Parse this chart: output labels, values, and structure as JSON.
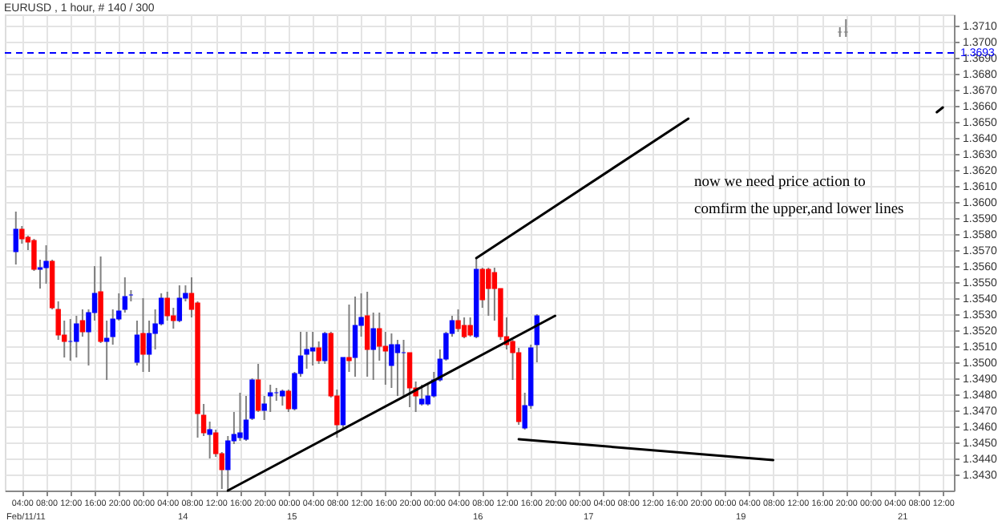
{
  "chart_data": {
    "type": "candlestick",
    "title": "EURUSD , 1 hour, # 140 / 300",
    "categories": [
      null,
      "04:00",
      null,
      null,
      null,
      "08:00",
      null,
      null,
      null,
      "12:00",
      null,
      null,
      null,
      "16:00",
      null,
      null,
      null,
      "20:00",
      null,
      null,
      null,
      "00:00",
      null,
      null,
      null,
      "04:00",
      null,
      null,
      null,
      "08:00",
      null,
      null,
      null,
      "12:00",
      null,
      null,
      null,
      "16:00",
      null,
      null,
      null,
      "20:00",
      null,
      null,
      null,
      "00:00",
      null,
      null,
      null,
      "04:00",
      null,
      null,
      null,
      "08:00",
      null,
      null,
      null,
      "12:00",
      null,
      null,
      null,
      "16:00",
      null,
      null,
      null,
      "20:00",
      null,
      null,
      null,
      "00:00",
      null,
      null,
      null,
      "04:00",
      null,
      null,
      null,
      "08:00",
      null,
      null,
      null,
      "12:00",
      null,
      null,
      null,
      "16:00",
      null,
      null,
      null,
      "20:00",
      null,
      null,
      null,
      "00:00",
      null,
      null,
      null,
      "04:00",
      null,
      null,
      null,
      "08:00",
      null,
      null,
      null,
      "12:00",
      null,
      null,
      null,
      "16:00",
      null,
      null,
      null,
      "20:00",
      null,
      null,
      null,
      "00:00",
      null,
      null,
      null,
      "04:00",
      null,
      null,
      null,
      "08:00",
      null,
      null,
      null,
      "12:00",
      null,
      null,
      null,
      "16:00",
      null,
      null,
      null,
      "20:00",
      null,
      null,
      null,
      "00:00",
      null,
      null,
      null,
      "04:00",
      null,
      null,
      null,
      "08:00",
      null,
      null,
      null,
      "12:00"
    ],
    "ohlc": [
      [
        1.3569,
        1.3594,
        1.3561,
        1.3583
      ],
      [
        1.3583,
        1.3585,
        1.3574,
        1.3577
      ],
      [
        1.3578,
        1.3579,
        1.357,
        1.3575
      ],
      [
        1.3576,
        1.3577,
        1.3557,
        1.3558
      ],
      [
        1.3558,
        1.3564,
        1.3546,
        1.3559
      ],
      [
        1.3559,
        1.3573,
        1.3549,
        1.3563
      ],
      [
        1.3563,
        1.3564,
        1.3533,
        1.3534
      ],
      [
        1.3533,
        1.3538,
        1.3514,
        1.3517
      ],
      [
        1.3517,
        1.3526,
        1.3503,
        1.3513
      ],
      [
        1.3513,
        1.3527,
        1.3501,
        1.3513
      ],
      [
        1.3513,
        1.3529,
        1.3503,
        1.3524
      ],
      [
        1.3526,
        1.3533,
        1.3516,
        1.3519
      ],
      [
        1.3519,
        1.3533,
        1.3498,
        1.3531
      ],
      [
        1.3531,
        1.356,
        1.3526,
        1.3543
      ],
      [
        1.3544,
        1.3566,
        1.3512,
        1.3513
      ],
      [
        1.3513,
        1.3526,
        1.3489,
        1.3515
      ],
      [
        1.3516,
        1.3533,
        1.3511,
        1.3527
      ],
      [
        1.3527,
        1.3543,
        1.3526,
        1.3532
      ],
      [
        1.3533,
        1.3553,
        1.3531,
        1.3541
      ],
      [
        1.3542,
        1.3545,
        1.3538,
        1.3542
      ],
      [
        1.35,
        1.3526,
        1.3498,
        1.3517
      ],
      [
        1.3518,
        1.354,
        1.3494,
        1.3505
      ],
      [
        1.3505,
        1.3526,
        1.3494,
        1.3518
      ],
      [
        1.3518,
        1.3533,
        1.3508,
        1.3524
      ],
      [
        1.3524,
        1.3543,
        1.3523,
        1.354
      ],
      [
        1.354,
        1.3544,
        1.3526,
        1.3529
      ],
      [
        1.3529,
        1.3534,
        1.3521,
        1.3526
      ],
      [
        1.3526,
        1.3548,
        1.3525,
        1.354
      ],
      [
        1.354,
        1.3548,
        1.3538,
        1.3543
      ],
      [
        1.3543,
        1.3553,
        1.3528,
        1.3533
      ],
      [
        1.3537,
        1.3538,
        1.3453,
        1.3468
      ],
      [
        1.3467,
        1.3474,
        1.3454,
        1.3456
      ],
      [
        1.3455,
        1.3463,
        1.344,
        1.3458
      ],
      [
        1.3456,
        1.3458,
        1.3441,
        1.3443
      ],
      [
        1.3443,
        1.3444,
        1.3421,
        1.3433
      ],
      [
        1.3433,
        1.3454,
        1.342,
        1.3451
      ],
      [
        1.3451,
        1.3469,
        1.3449,
        1.3455
      ],
      [
        1.3453,
        1.3481,
        1.3451,
        1.3456
      ],
      [
        1.3452,
        1.3479,
        1.3451,
        1.3464
      ],
      [
        1.3465,
        1.349,
        1.3464,
        1.3489
      ],
      [
        1.3489,
        1.3499,
        1.3469,
        1.347
      ],
      [
        1.347,
        1.3479,
        1.3464,
        1.3474
      ],
      [
        1.3479,
        1.3486,
        1.3469,
        1.3481
      ],
      [
        1.3481,
        1.3484,
        1.3476,
        1.3481
      ],
      [
        1.3479,
        1.3483,
        1.3473,
        1.3482
      ],
      [
        1.3482,
        1.3483,
        1.3469,
        1.3471
      ],
      [
        1.3471,
        1.3494,
        1.347,
        1.3493
      ],
      [
        1.3493,
        1.3519,
        1.3491,
        1.3504
      ],
      [
        1.3505,
        1.3519,
        1.3496,
        1.3508
      ],
      [
        1.3507,
        1.3519,
        1.3498,
        1.3509
      ],
      [
        1.3509,
        1.3513,
        1.3499,
        1.3501
      ],
      [
        1.3501,
        1.3519,
        1.3499,
        1.3518
      ],
      [
        1.3518,
        1.3519,
        1.3478,
        1.3479
      ],
      [
        1.3479,
        1.3483,
        1.3453,
        1.3461
      ],
      [
        1.3461,
        1.3503,
        1.3459,
        1.3503
      ],
      [
        1.3503,
        1.3536,
        1.3494,
        1.3501
      ],
      [
        1.3503,
        1.3541,
        1.3491,
        1.3523
      ],
      [
        1.3523,
        1.3543,
        1.3516,
        1.3528
      ],
      [
        1.3529,
        1.3544,
        1.3491,
        1.3508
      ],
      [
        1.3508,
        1.3531,
        1.3489,
        1.3521
      ],
      [
        1.3521,
        1.3531,
        1.3501,
        1.351
      ],
      [
        1.351,
        1.3519,
        1.3486,
        1.3507
      ],
      [
        1.3498,
        1.3518,
        1.3484,
        1.3511
      ],
      [
        1.3506,
        1.3514,
        1.3479,
        1.3511
      ],
      [
        1.3506,
        1.3514,
        1.3478,
        1.3506
      ],
      [
        1.3506,
        1.3506,
        1.3472,
        1.3484
      ],
      [
        1.3484,
        1.3488,
        1.3469,
        1.3479
      ],
      [
        1.3474,
        1.3486,
        1.3473,
        1.3477
      ],
      [
        1.3474,
        1.3486,
        1.3473,
        1.3479
      ],
      [
        1.3479,
        1.3494,
        1.3478,
        1.3489
      ],
      [
        1.3489,
        1.3508,
        1.3488,
        1.3502
      ],
      [
        1.3502,
        1.3519,
        1.3501,
        1.3518
      ],
      [
        1.3518,
        1.3529,
        1.3516,
        1.3526
      ],
      [
        1.3526,
        1.3533,
        1.3519,
        1.3521
      ],
      [
        1.3523,
        1.3528,
        1.3515,
        1.3516
      ],
      [
        1.3523,
        1.3528,
        1.3516,
        1.3517
      ],
      [
        1.3516,
        1.3565,
        1.3515,
        1.3558
      ],
      [
        1.3558,
        1.3559,
        1.3534,
        1.3539
      ],
      [
        1.3558,
        1.3559,
        1.3529,
        1.3546
      ],
      [
        1.3556,
        1.3559,
        1.3526,
        1.3546
      ],
      [
        1.3546,
        1.3546,
        1.3514,
        1.3516
      ],
      [
        1.3516,
        1.3528,
        1.3508,
        1.3511
      ],
      [
        1.3513,
        1.3514,
        1.3489,
        1.3506
      ],
      [
        1.3506,
        1.3509,
        1.3461,
        1.3463
      ],
      [
        1.3459,
        1.3481,
        1.3458,
        1.3473
      ],
      [
        1.3473,
        1.3511,
        1.3471,
        1.3509
      ],
      [
        1.3511,
        1.353,
        1.35,
        1.3529
      ],
      null,
      null,
      null,
      null,
      null,
      null,
      null,
      null,
      null,
      null,
      null,
      null,
      null,
      null,
      null,
      null,
      null,
      null,
      null,
      null,
      null,
      null,
      null,
      null,
      null,
      null,
      null,
      null,
      null,
      null,
      null,
      null,
      null,
      null,
      null,
      null,
      null,
      null,
      null,
      null,
      null,
      null,
      null,
      null,
      null,
      null,
      null,
      null,
      null,
      [
        1.3706,
        1.3709,
        1.3703,
        1.3706
      ],
      [
        1.3706,
        1.3714,
        1.3703,
        1.3706
      ],
      null,
      null,
      null,
      null,
      null,
      null,
      null,
      null,
      null,
      null,
      null,
      null,
      null,
      null,
      null,
      null
    ],
    "colors": [
      "#0000ff",
      "#ff0000",
      "#ff0000",
      "#ff0000",
      "#0000ff",
      "#0000ff",
      "#ff0000",
      "#ff0000",
      "#ff0000",
      "#0000ff",
      "#0000ff",
      "#ff0000",
      "#0000ff",
      "#0000ff",
      "#ff0000",
      "#0000ff",
      "#0000ff",
      "#0000ff",
      "#0000ff",
      "#0000ff",
      "#0000ff",
      "#ff0000",
      "#0000ff",
      "#0000ff",
      "#0000ff",
      "#ff0000",
      "#ff0000",
      "#0000ff",
      "#0000ff",
      "#ff0000",
      "#ff0000",
      "#ff0000",
      "#0000ff",
      "#ff0000",
      "#ff0000",
      "#0000ff",
      "#0000ff",
      "#0000ff",
      "#0000ff",
      "#0000ff",
      "#ff0000",
      "#0000ff",
      "#0000ff",
      "#0000ff",
      "#0000ff",
      "#ff0000",
      "#0000ff",
      "#0000ff",
      "#0000ff",
      "#0000ff",
      "#ff0000",
      "#0000ff",
      "#ff0000",
      "#ff0000",
      "#0000ff",
      "#ff0000",
      "#0000ff",
      "#0000ff",
      "#ff0000",
      "#0000ff",
      "#ff0000",
      "#ff0000",
      "#0000ff",
      "#0000ff",
      "#0000ff",
      "#ff0000",
      "#ff0000",
      "#0000ff",
      "#0000ff",
      "#0000ff",
      "#0000ff",
      "#0000ff",
      "#0000ff",
      "#ff0000",
      "#ff0000",
      "#ff0000",
      "#0000ff",
      "#ff0000",
      "#ff0000",
      "#ff0000",
      "#ff0000",
      "#ff0000",
      "#ff0000",
      "#ff0000",
      "#0000ff",
      "#0000ff",
      "#0000ff",
      null,
      null,
      null,
      null,
      null,
      null,
      null,
      null,
      null,
      null,
      null,
      null,
      null,
      null,
      null,
      null,
      null,
      null,
      null,
      null,
      null,
      null,
      null,
      null,
      null,
      null,
      null,
      null,
      null,
      null,
      null,
      null,
      null,
      null,
      null,
      null,
      null,
      null,
      null,
      null,
      null,
      null,
      null,
      null,
      null,
      null,
      null,
      null,
      null,
      "#808080",
      "#808080",
      null,
      null,
      null,
      null,
      null,
      null,
      null,
      null,
      null,
      null,
      null,
      null,
      null,
      null,
      null,
      null
    ],
    "series": [
      {
        "type": "line",
        "color": "#000000",
        "values": [
          null,
          null,
          null,
          null,
          null,
          null,
          null,
          null,
          null,
          null,
          null,
          null,
          null,
          null,
          null,
          null,
          null,
          null,
          null,
          null,
          null,
          null,
          null,
          null,
          null,
          null,
          null,
          null,
          null,
          null,
          null,
          null,
          null,
          null,
          null,
          1.342,
          null,
          null,
          null,
          null,
          null,
          null,
          null,
          null,
          null,
          null,
          null,
          null,
          null,
          null,
          null,
          null,
          null,
          null,
          null,
          null,
          null,
          null,
          null,
          null,
          null,
          null,
          null,
          null,
          null,
          null,
          null,
          null,
          null,
          null,
          null,
          null,
          null,
          null,
          null,
          null,
          null,
          null,
          null,
          null,
          null,
          null,
          null,
          null,
          null,
          null,
          null,
          null,
          null,
          1.3529,
          null,
          null,
          null,
          null,
          null,
          null,
          null,
          null,
          null,
          null,
          null,
          null,
          null,
          null,
          null,
          null,
          null,
          null,
          null,
          null,
          null,
          null,
          null,
          null,
          null,
          null,
          null,
          null,
          null,
          null,
          null,
          null,
          null,
          null,
          null,
          null,
          null,
          null,
          null,
          null,
          null,
          null,
          null,
          null,
          null,
          null,
          null,
          null,
          null,
          null,
          null,
          null,
          null,
          null,
          null,
          null,
          null,
          null,
          null,
          null,
          null,
          null,
          null,
          null
        ]
      },
      {
        "type": "line",
        "color": "#000000",
        "values": [
          null,
          null,
          null,
          null,
          null,
          null,
          null,
          null,
          null,
          null,
          null,
          null,
          null,
          null,
          null,
          null,
          null,
          null,
          null,
          null,
          null,
          null,
          null,
          null,
          null,
          null,
          null,
          null,
          null,
          null,
          null,
          null,
          null,
          null,
          null,
          null,
          null,
          null,
          null,
          null,
          null,
          null,
          null,
          null,
          null,
          null,
          null,
          null,
          null,
          null,
          null,
          null,
          null,
          null,
          null,
          null,
          null,
          null,
          null,
          null,
          null,
          null,
          null,
          null,
          null,
          null,
          null,
          null,
          null,
          null,
          null,
          null,
          null,
          null,
          null,
          null,
          1.3565,
          null,
          null,
          null,
          null,
          null,
          null,
          null,
          null,
          null,
          null,
          null,
          null,
          null,
          null,
          null,
          null,
          null,
          null,
          null,
          null,
          null,
          null,
          null,
          null,
          null,
          null,
          null,
          null,
          null,
          null,
          null,
          null,
          null,
          null,
          1.3652,
          null,
          null,
          null,
          null,
          null,
          null,
          null,
          null,
          null,
          null,
          null,
          null,
          null,
          null,
          null,
          null,
          null,
          null,
          null,
          null,
          null,
          null,
          null,
          null,
          null,
          null,
          null,
          null,
          null,
          null,
          null,
          null,
          null,
          null,
          null,
          null,
          null,
          null,
          null,
          null,
          null,
          null
        ]
      },
      {
        "type": "line",
        "color": "#000000",
        "values": [
          null,
          null,
          null,
          null,
          null,
          null,
          null,
          null,
          null,
          null,
          null,
          null,
          null,
          null,
          null,
          null,
          null,
          null,
          null,
          null,
          null,
          null,
          null,
          null,
          null,
          null,
          null,
          null,
          null,
          null,
          null,
          null,
          null,
          null,
          null,
          null,
          null,
          null,
          null,
          null,
          null,
          null,
          null,
          null,
          null,
          null,
          null,
          null,
          null,
          null,
          null,
          null,
          null,
          null,
          null,
          null,
          null,
          null,
          null,
          null,
          null,
          null,
          null,
          null,
          null,
          null,
          null,
          null,
          null,
          null,
          null,
          null,
          null,
          null,
          null,
          null,
          null,
          null,
          null,
          null,
          null,
          null,
          null,
          1.3452,
          null,
          null,
          null,
          null,
          null,
          null,
          null,
          null,
          null,
          null,
          null,
          null,
          null,
          null,
          null,
          null,
          null,
          null,
          null,
          null,
          null,
          null,
          null,
          null,
          null,
          null,
          null,
          null,
          null,
          null,
          null,
          null,
          null,
          null,
          null,
          null,
          null,
          null,
          null,
          null,
          null,
          1.3439,
          null,
          null,
          null,
          null,
          null,
          null,
          null,
          null,
          null,
          null,
          null,
          null,
          null,
          null,
          null,
          null,
          null,
          null,
          null,
          null,
          null,
          null,
          null,
          null,
          null,
          null,
          null,
          null
        ]
      },
      {
        "type": "line",
        "color": "#000000",
        "values": [
          null,
          null,
          null,
          null,
          null,
          null,
          null,
          null,
          null,
          null,
          null,
          null,
          null,
          null,
          null,
          null,
          null,
          null,
          null,
          null,
          null,
          null,
          null,
          null,
          null,
          null,
          null,
          null,
          null,
          null,
          null,
          null,
          null,
          null,
          null,
          null,
          null,
          null,
          null,
          null,
          null,
          null,
          null,
          null,
          null,
          null,
          null,
          null,
          null,
          null,
          null,
          null,
          null,
          null,
          null,
          null,
          null,
          null,
          null,
          null,
          null,
          null,
          null,
          null,
          null,
          null,
          null,
          null,
          null,
          null,
          null,
          null,
          null,
          null,
          null,
          null,
          null,
          null,
          null,
          null,
          null,
          null,
          null,
          null,
          null,
          null,
          null,
          null,
          null,
          null,
          null,
          null,
          null,
          null,
          null,
          null,
          null,
          null,
          null,
          null,
          null,
          null,
          null,
          null,
          null,
          null,
          null,
          null,
          null,
          null,
          null,
          null,
          null,
          null,
          null,
          null,
          null,
          null,
          null,
          null,
          null,
          null,
          null,
          null,
          null,
          null,
          null,
          null,
          null,
          null,
          null,
          null,
          null,
          null,
          null,
          null,
          null,
          null,
          null,
          null,
          null,
          null,
          null,
          null,
          null,
          null,
          null,
          null,
          null,
          null,
          null,
          null,
          1.3656,
          1.3659
        ]
      }
    ],
    "ref_lines": [
      {
        "axis": "y",
        "value": 1.3693,
        "label": "1.3693",
        "color": "#0000ff",
        "line_style": "dashed"
      }
    ],
    "annotations": [
      "now we need price action to",
      "comfirm the upper,and lower lines",
      "Feb/11/11",
      "14",
      "15",
      "16",
      "17",
      "19",
      "21"
    ],
    "ylim": [
      1.342,
      1.3717
    ],
    "yticks": [
      {
        "value": 1.343,
        "label": "1.3430"
      },
      {
        "value": 1.344,
        "label": "1.3440"
      },
      {
        "value": 1.345,
        "label": "1.3450"
      },
      {
        "value": 1.346,
        "label": "1.3460"
      },
      {
        "value": 1.347,
        "label": "1.3470"
      },
      {
        "value": 1.348,
        "label": "1.3480"
      },
      {
        "value": 1.349,
        "label": "1.3490"
      },
      {
        "value": 1.35,
        "label": "1.3500"
      },
      {
        "value": 1.351,
        "label": "1.3510"
      },
      {
        "value": 1.352,
        "label": "1.3520"
      },
      {
        "value": 1.353,
        "label": "1.3530"
      },
      {
        "value": 1.354,
        "label": "1.3540"
      },
      {
        "value": 1.355,
        "label": "1.3550"
      },
      {
        "value": 1.356,
        "label": "1.3560"
      },
      {
        "value": 1.357,
        "label": "1.3570"
      },
      {
        "value": 1.358,
        "label": "1.3580"
      },
      {
        "value": 1.359,
        "label": "1.3590"
      },
      {
        "value": 1.36,
        "label": "1.3600"
      },
      {
        "value": 1.361,
        "label": "1.3610"
      },
      {
        "value": 1.362,
        "label": "1.3620"
      },
      {
        "value": 1.363,
        "label": "1.3630"
      },
      {
        "value": 1.364,
        "label": "1.3640"
      },
      {
        "value": 1.365,
        "label": "1.3650"
      },
      {
        "value": 1.366,
        "label": "1.3660"
      },
      {
        "value": 1.367,
        "label": "1.3670"
      },
      {
        "value": 1.368,
        "label": "1.3680"
      },
      {
        "value": 1.369,
        "label": "1.3690"
      },
      {
        "value": 1.37,
        "label": "1.3700"
      },
      {
        "value": 1.371,
        "label": "1.3710"
      }
    ],
    "grid": true
  }
}
